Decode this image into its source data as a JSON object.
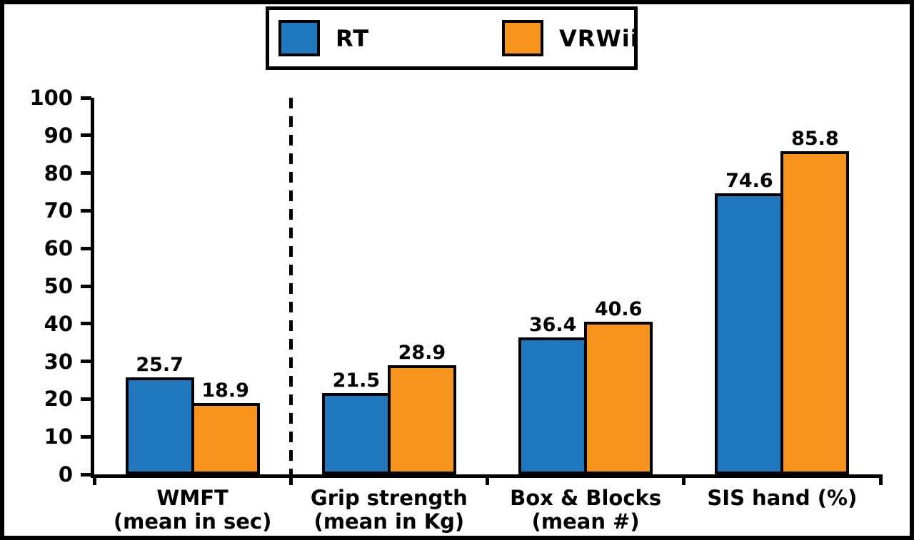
{
  "chart_data": {
    "type": "bar",
    "title": "",
    "categories": [
      {
        "label_lines": [
          "WMFT",
          "(mean in sec)"
        ]
      },
      {
        "label_lines": [
          "Grip strength",
          "(mean in Kg)"
        ]
      },
      {
        "label_lines": [
          "Box & Blocks",
          "(mean #)"
        ]
      },
      {
        "label_lines": [
          "SIS hand (%)"
        ]
      }
    ],
    "series": [
      {
        "name": "RT",
        "color": "#2077BC",
        "values": [
          25.7,
          21.5,
          36.4,
          74.6
        ]
      },
      {
        "name": "VRWii",
        "color": "#F7941E",
        "values": [
          18.9,
          28.9,
          40.6,
          85.8
        ]
      }
    ],
    "value_labels": [
      "25.7",
      "21.5",
      "36.4",
      "74.6",
      "18.9",
      "28.9",
      "40.6",
      "85.8"
    ],
    "ylim": [
      0,
      100
    ],
    "yticks": [
      0,
      10,
      20,
      30,
      40,
      50,
      60,
      70,
      80,
      90,
      100
    ],
    "grid": false,
    "legend_position": "top-center",
    "divider_after_category_index": 0,
    "axis_color": "#000000",
    "background_color": "#ffffff"
  }
}
